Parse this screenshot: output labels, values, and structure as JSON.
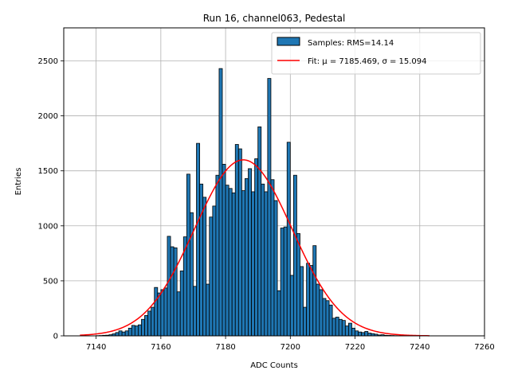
{
  "chart_data": {
    "type": "bar",
    "title": "Run 16, channel063, Pedestal",
    "xlabel": "ADC Counts",
    "ylabel": "Entries",
    "xlim": [
      7130,
      7260
    ],
    "ylim": [
      0,
      2800
    ],
    "xticks": [
      7140,
      7160,
      7180,
      7200,
      7220,
      7240,
      7260
    ],
    "yticks": [
      0,
      500,
      1000,
      1500,
      2000,
      2500
    ],
    "grid": true,
    "legend_position": "top-right",
    "colors": {
      "bar_fill": "#1f77b4",
      "bar_edge": "#000000",
      "fit_line": "#ff0000",
      "grid": "#b0b0b0"
    },
    "histogram": {
      "name": "Samples: RMS=14.14",
      "bin_width": 1,
      "bins_start": [
        7140,
        7141,
        7142,
        7143,
        7144,
        7145,
        7146,
        7147,
        7148,
        7149,
        7150,
        7151,
        7152,
        7153,
        7154,
        7155,
        7156,
        7157,
        7158,
        7159,
        7160,
        7161,
        7162,
        7163,
        7164,
        7165,
        7166,
        7167,
        7168,
        7169,
        7170,
        7171,
        7172,
        7173,
        7174,
        7175,
        7176,
        7177,
        7178,
        7179,
        7180,
        7181,
        7182,
        7183,
        7184,
        7185,
        7186,
        7187,
        7188,
        7189,
        7190,
        7191,
        7192,
        7193,
        7194,
        7195,
        7196,
        7197,
        7198,
        7199,
        7200,
        7201,
        7202,
        7203,
        7204,
        7205,
        7206,
        7207,
        7208,
        7209,
        7210,
        7211,
        7212,
        7213,
        7214,
        7215,
        7216,
        7217,
        7218,
        7219,
        7220,
        7221,
        7222,
        7223,
        7224,
        7225,
        7226,
        7227,
        7228,
        7229,
        7230,
        7231,
        7232,
        7233,
        7234,
        7235,
        7236,
        7237,
        7238,
        7239,
        7240,
        7241,
        7242,
        7243,
        7244
      ],
      "counts": [
        2,
        3,
        5,
        6,
        10,
        18,
        30,
        45,
        35,
        45,
        70,
        95,
        90,
        100,
        150,
        185,
        225,
        260,
        440,
        390,
        420,
        435,
        905,
        810,
        800,
        400,
        590,
        900,
        1470,
        1120,
        450,
        1750,
        1380,
        1260,
        470,
        1080,
        1180,
        1460,
        2430,
        1560,
        1370,
        1340,
        1300,
        1740,
        1700,
        1320,
        1430,
        1520,
        1310,
        1610,
        1900,
        1380,
        1310,
        2340,
        1420,
        1230,
        410,
        980,
        990,
        1760,
        550,
        1460,
        930,
        630,
        260,
        660,
        640,
        820,
        470,
        420,
        340,
        320,
        280,
        160,
        170,
        150,
        140,
        90,
        115,
        70,
        45,
        35,
        30,
        40,
        25,
        20,
        15,
        8,
        10,
        5,
        4,
        3,
        2,
        1,
        1,
        0,
        0,
        0,
        0,
        0,
        0,
        0,
        0,
        0,
        0
      ]
    },
    "fit": {
      "name": "Fit: μ = 7185.469, σ = 15.094",
      "mu": 7185.469,
      "sigma": 15.094,
      "peak": 1600,
      "x_range": [
        7135,
        7243
      ]
    }
  }
}
